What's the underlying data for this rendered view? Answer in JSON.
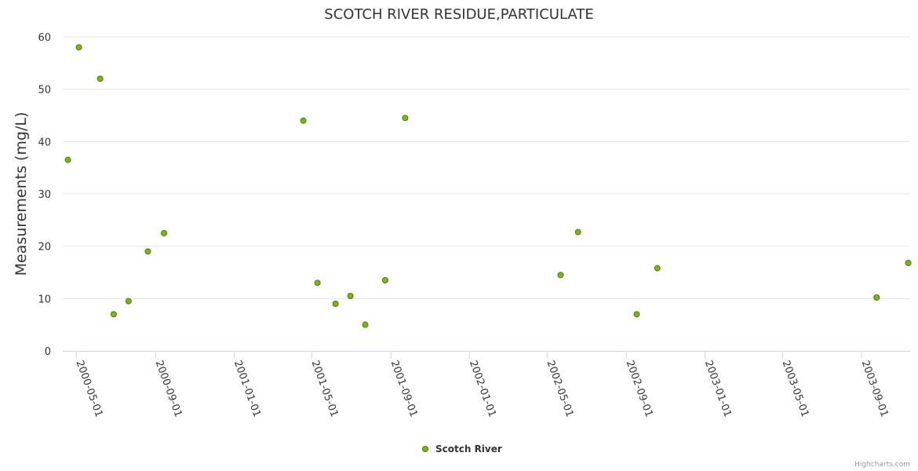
{
  "colors": {
    "point_fill": "#7cb518",
    "point_stroke": "#4a7d06",
    "grid": "#e6e6e6",
    "axis_line": "#ccd6eb"
  },
  "credits": "Highcharts.com",
  "chart_data": {
    "type": "scatter",
    "title": "SCOTCH RIVER RESIDUE,PARTICULATE",
    "xlabel": "",
    "ylabel": "Measurements (mg/L)",
    "ylim": [
      0,
      60
    ],
    "yticks": [
      0,
      10,
      20,
      30,
      40,
      50,
      60
    ],
    "xlim": [
      "2000-04-10",
      "2003-11-15"
    ],
    "xticks": [
      "2000-05-01",
      "2000-09-01",
      "2001-01-01",
      "2001-05-01",
      "2001-09-01",
      "2002-01-01",
      "2002-05-01",
      "2002-09-01",
      "2003-01-01",
      "2003-05-01",
      "2003-09-01"
    ],
    "grid": true,
    "legend_position": "bottom-center",
    "series": [
      {
        "name": "Scotch River",
        "points": [
          {
            "x": "2000-04-18",
            "y": 36.5
          },
          {
            "x": "2000-05-05",
            "y": 58
          },
          {
            "x": "2000-06-07",
            "y": 52
          },
          {
            "x": "2000-06-28",
            "y": 7
          },
          {
            "x": "2000-07-21",
            "y": 9.5
          },
          {
            "x": "2000-08-20",
            "y": 19
          },
          {
            "x": "2000-09-14",
            "y": 22.5
          },
          {
            "x": "2001-04-18",
            "y": 44
          },
          {
            "x": "2001-05-10",
            "y": 13
          },
          {
            "x": "2001-06-07",
            "y": 9
          },
          {
            "x": "2001-06-30",
            "y": 10.5
          },
          {
            "x": "2001-07-23",
            "y": 5
          },
          {
            "x": "2001-08-23",
            "y": 13.5
          },
          {
            "x": "2001-09-23",
            "y": 44.5
          },
          {
            "x": "2002-05-22",
            "y": 14.5
          },
          {
            "x": "2002-06-18",
            "y": 22.7
          },
          {
            "x": "2002-09-17",
            "y": 7
          },
          {
            "x": "2002-10-19",
            "y": 15.8
          },
          {
            "x": "2003-09-24",
            "y": 10.2
          },
          {
            "x": "2003-11-12",
            "y": 16.8
          }
        ]
      }
    ]
  }
}
